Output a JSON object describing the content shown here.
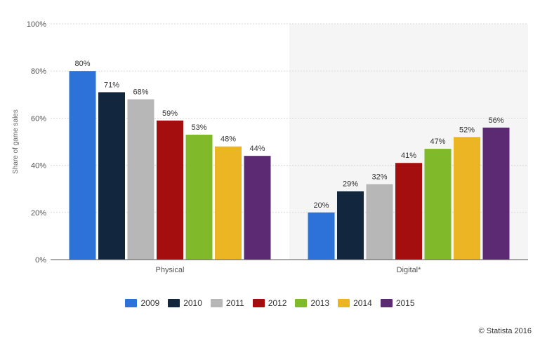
{
  "chart_data": {
    "type": "bar",
    "categories": [
      "Physical",
      "Digital*"
    ],
    "series": [
      {
        "name": "2009",
        "color": "#2d72d9",
        "values": [
          80,
          20
        ],
        "labels": [
          "80%",
          "20%"
        ]
      },
      {
        "name": "2010",
        "color": "#12263e",
        "values": [
          71,
          29
        ],
        "labels": [
          "71%",
          "29%"
        ]
      },
      {
        "name": "2011",
        "color": "#b7b7b7",
        "values": [
          68,
          32
        ],
        "labels": [
          "68%",
          "32%"
        ]
      },
      {
        "name": "2012",
        "color": "#a50e0e",
        "values": [
          59,
          41
        ],
        "labels": [
          "59%",
          "41%"
        ]
      },
      {
        "name": "2013",
        "color": "#80b929",
        "values": [
          53,
          47
        ],
        "labels": [
          "53%",
          "47%"
        ]
      },
      {
        "name": "2014",
        "color": "#ebb524",
        "values": [
          48,
          52
        ],
        "labels": [
          "48%",
          "52%"
        ]
      },
      {
        "name": "2015",
        "color": "#5c2a72",
        "values": [
          44,
          56
        ],
        "labels": [
          "44%",
          "56%"
        ]
      }
    ],
    "ylabel": "Share of game sales",
    "xlabel": "",
    "ylim": [
      0,
      100
    ],
    "yticks": [
      "0%",
      "20%",
      "40%",
      "60%",
      "80%",
      "100%"
    ],
    "shaded_category": "Digital*",
    "legend_position": "bottom-center"
  },
  "credit": "© Statista 2016"
}
